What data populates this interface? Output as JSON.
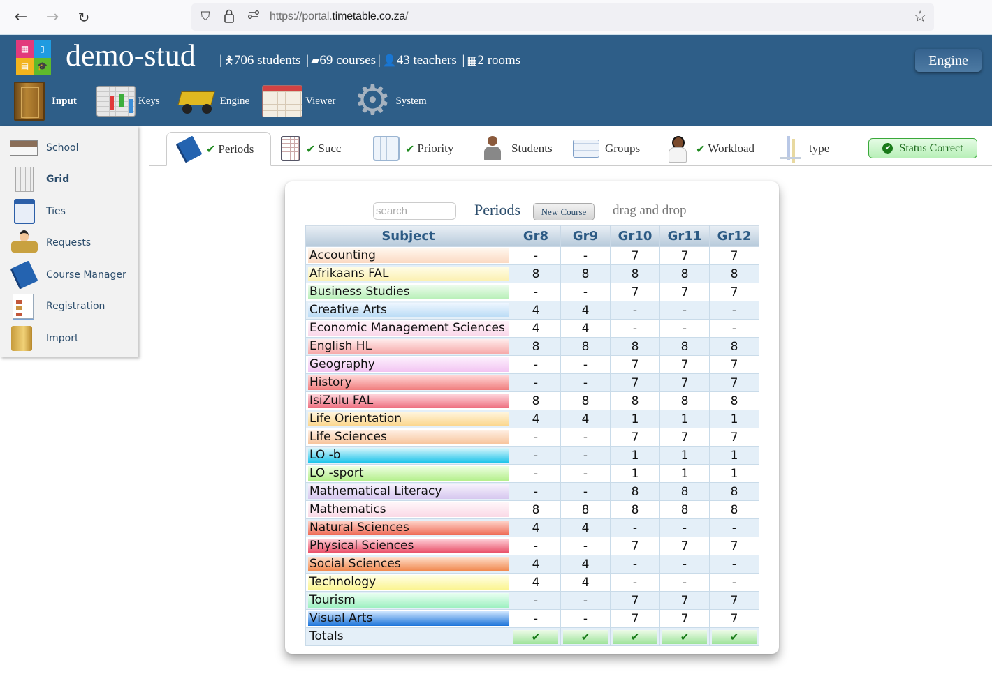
{
  "browser": {
    "url_prefix": "https://portal.",
    "url_domain": "timetable.co.za",
    "url_suffix": "/",
    "icons": {
      "back": "←",
      "forward": "→",
      "reload": "↻",
      "shield": "⛉",
      "lock": "🔒",
      "permissions": "⚯",
      "star": "☆"
    }
  },
  "header": {
    "title": "demo-stud",
    "stats": {
      "students": "706 students",
      "courses": "69 courses",
      "teachers": "43 teachers",
      "rooms": "2 rooms"
    },
    "engine_button": "Engine",
    "nav": [
      {
        "label": "Input",
        "active": true
      },
      {
        "label": "Keys"
      },
      {
        "label": "Engine"
      },
      {
        "label": "Viewer"
      },
      {
        "label": "System"
      }
    ]
  },
  "sidebar": {
    "items": [
      {
        "label": "School"
      },
      {
        "label": "Grid",
        "active": true
      },
      {
        "label": "Ties"
      },
      {
        "label": "Requests"
      },
      {
        "label": "Course Manager"
      },
      {
        "label": "Registration"
      },
      {
        "label": "Import"
      }
    ]
  },
  "tabs": [
    {
      "label": "Periods",
      "checked": true,
      "active": true
    },
    {
      "label": "Succ",
      "checked": true
    },
    {
      "label": "Priority",
      "checked": true
    },
    {
      "label": "Students",
      "checked": false
    },
    {
      "label": "Groups",
      "checked": false
    },
    {
      "label": "Workload",
      "checked": true
    },
    {
      "label": "type",
      "checked": false
    }
  ],
  "check_glyph": "✔",
  "status": {
    "label": "Status Correct",
    "color": "#1d6b1d"
  },
  "panel": {
    "search_placeholder": "search",
    "title": "Periods",
    "new_course_button": "New Course",
    "hint": "drag and drop",
    "columns": [
      "Subject",
      "Gr8",
      "Gr9",
      "Gr10",
      "Gr11",
      "Gr12"
    ],
    "rows": [
      {
        "subject": "Accounting",
        "color": [
          "#fff7ee",
          "#fbd9c2"
        ],
        "values": [
          "-",
          "-",
          "7",
          "7",
          "7"
        ]
      },
      {
        "subject": "Afrikaans FAL",
        "color": [
          "#fffde8",
          "#fbf0b0"
        ],
        "values": [
          "8",
          "8",
          "8",
          "8",
          "8"
        ]
      },
      {
        "subject": "Business Studies",
        "color": [
          "#eefcee",
          "#b6efb6"
        ],
        "values": [
          "-",
          "-",
          "7",
          "7",
          "7"
        ]
      },
      {
        "subject": "Creative Arts",
        "color": [
          "#eef6ff",
          "#b9dbf5"
        ],
        "values": [
          "4",
          "4",
          "-",
          "-",
          "-"
        ]
      },
      {
        "subject": "Economic Management Sciences",
        "color": [
          "#fff4fa",
          "#fad8ea"
        ],
        "values": [
          "4",
          "4",
          "-",
          "-",
          "-"
        ]
      },
      {
        "subject": "English HL",
        "color": [
          "#ffecec",
          "#f6a9a9"
        ],
        "values": [
          "8",
          "8",
          "8",
          "8",
          "8"
        ]
      },
      {
        "subject": "Geography",
        "color": [
          "#fdf0fd",
          "#f2c4f2"
        ],
        "values": [
          "-",
          "-",
          "7",
          "7",
          "7"
        ]
      },
      {
        "subject": "History",
        "color": [
          "#ffd7d7",
          "#f07c7c"
        ],
        "values": [
          "-",
          "-",
          "7",
          "7",
          "7"
        ]
      },
      {
        "subject": "IsiZulu FAL",
        "color": [
          "#ffd9df",
          "#ee6f80"
        ],
        "values": [
          "8",
          "8",
          "8",
          "8",
          "8"
        ]
      },
      {
        "subject": "Life Orientation",
        "color": [
          "#fff6e0",
          "#fbd58a"
        ],
        "values": [
          "4",
          "4",
          "1",
          "1",
          "1"
        ]
      },
      {
        "subject": "Life Sciences",
        "color": [
          "#fff0e4",
          "#f7c39a"
        ],
        "values": [
          "-",
          "-",
          "7",
          "7",
          "7"
        ]
      },
      {
        "subject": "LO -b",
        "color": [
          "#d8f6fc",
          "#1ec4ea"
        ],
        "values": [
          "-",
          "-",
          "1",
          "1",
          "1"
        ]
      },
      {
        "subject": "LO -sport",
        "color": [
          "#eeffe2",
          "#b4ef8c"
        ],
        "values": [
          "-",
          "-",
          "1",
          "1",
          "1"
        ]
      },
      {
        "subject": "Mathematical Literacy",
        "color": [
          "#f6f1fc",
          "#d6c7ef"
        ],
        "values": [
          "-",
          "-",
          "8",
          "8",
          "8"
        ]
      },
      {
        "subject": "Mathematics",
        "color": [
          "#fff6f9",
          "#fad9e6"
        ],
        "values": [
          "8",
          "8",
          "8",
          "8",
          "8"
        ]
      },
      {
        "subject": "Natural Sciences",
        "color": [
          "#ffd6cc",
          "#ee6a55"
        ],
        "values": [
          "4",
          "4",
          "-",
          "-",
          "-"
        ]
      },
      {
        "subject": "Physical Sciences",
        "color": [
          "#ffd2da",
          "#e84a64"
        ],
        "values": [
          "-",
          "-",
          "7",
          "7",
          "7"
        ]
      },
      {
        "subject": "Social Sciences",
        "color": [
          "#ffe0cc",
          "#f0854a"
        ],
        "values": [
          "4",
          "4",
          "-",
          "-",
          "-"
        ]
      },
      {
        "subject": "Technology",
        "color": [
          "#ffffe6",
          "#fbf491"
        ],
        "values": [
          "4",
          "4",
          "-",
          "-",
          "-"
        ]
      },
      {
        "subject": "Tourism",
        "color": [
          "#eafff2",
          "#9df0c0"
        ],
        "values": [
          "-",
          "-",
          "7",
          "7",
          "7"
        ]
      },
      {
        "subject": "Visual Arts",
        "color": [
          "#cfe6ff",
          "#1a73d9"
        ],
        "values": [
          "-",
          "-",
          "7",
          "7",
          "7"
        ]
      }
    ],
    "totals_label": "Totals",
    "totals": [
      "✔",
      "✔",
      "✔",
      "✔",
      "✔"
    ]
  }
}
